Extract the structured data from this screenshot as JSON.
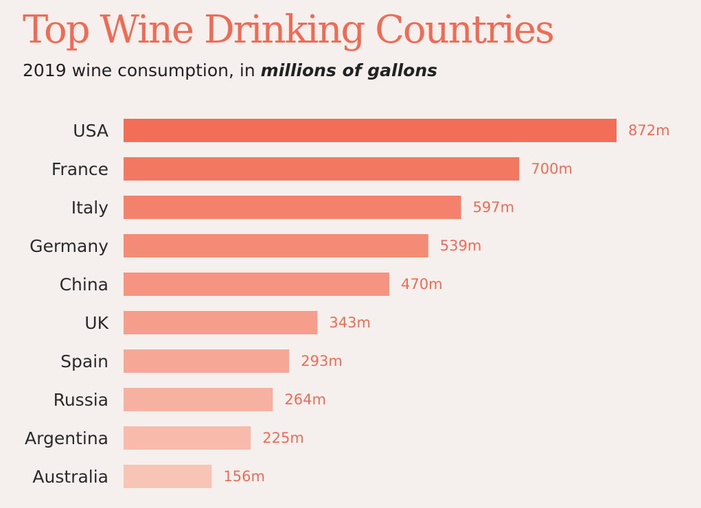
{
  "title": "Top Wine Drinking Countries",
  "subtitle": {
    "prefix": "2019 wine consumption, in ",
    "emphasis": "millions of gallons"
  },
  "colors": {
    "title": "#ee6b55",
    "bar_start": "#f26e57",
    "bar_end": "#f8c4b6",
    "value_label": "#ee6b55",
    "background": "#f5f0ee"
  },
  "chart_data": {
    "type": "bar",
    "orientation": "horizontal",
    "categories": [
      "USA",
      "France",
      "Italy",
      "Germany",
      "China",
      "UK",
      "Spain",
      "Russia",
      "Argentina",
      "Australia"
    ],
    "values": [
      872,
      700,
      597,
      539,
      470,
      343,
      293,
      264,
      225,
      156
    ],
    "value_labels": [
      "872m",
      "700m",
      "597m",
      "539m",
      "470m",
      "343m",
      "293m",
      "264m",
      "225m",
      "156m"
    ],
    "title": "Top Wine Drinking Countries",
    "subtitle": "2019 wine consumption, in millions of gallons",
    "xlim": [
      0,
      872
    ],
    "grid": false,
    "legend": false
  }
}
